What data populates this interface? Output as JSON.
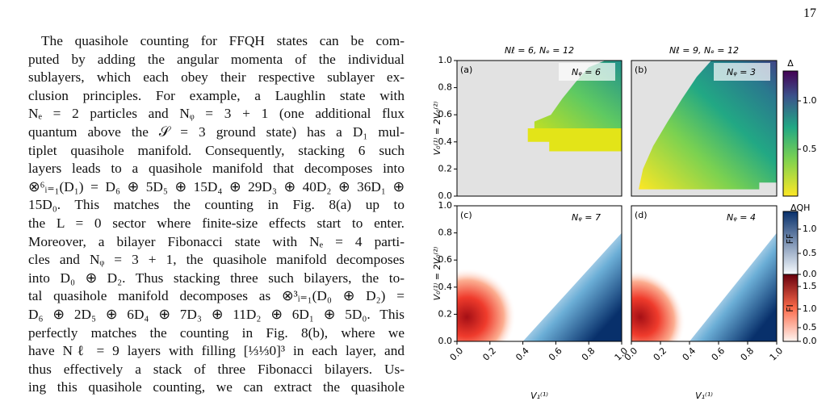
{
  "page_number": "17",
  "body": {
    "lines": [
      "The quasihole counting for FFQH states can be com-",
      "puted by adding the angular momenta of the individual",
      "sublayers, which each obey their respective sublayer ex-",
      "clusion principles. For example, a Laughlin state with",
      "Nₑ = 2 particles and Nᵩ = 3 + 1 (one additional flux",
      "quantum above the 𝒮 = 3 ground state) has a D₁ mul-",
      "tiplet quasihole manifold. Consequently, stacking 6 such",
      "layers leads to a quasihole manifold that decomposes into",
      "⊗⁶ᵢ₌₁(D₁) = D₆ ⊕ 5D₅ ⊕ 15D₄ ⊕ 29D₃ ⊕ 40D₂ ⊕ 36D₁ ⊕",
      "15D₀. This matches the counting in Fig. 8(a) up to",
      "the L = 0 sector where finite-size effects start to enter.",
      "Moreover, a bilayer Fibonacci state with Nₑ = 4 parti-",
      "cles and Nᵩ = 3 + 1, the quasihole manifold decomposes",
      "into D₀ ⊕ D₂. Thus stacking three such bilayers, the to-",
      "tal quasihole manifold decomposes as ⊗³ᵢ₌₁(D₀ ⊕ D₂) =",
      "D₆ ⊕ 2D₅ ⊕ 6D₄ ⊕ 7D₃ ⊕ 11D₂ ⊕ 6D₁ ⊕ 5D₀. This",
      "perfectly matches the counting in Fig. 8(b), where we",
      "have Nℓ = 9 layers with filling [⅓⅓0]³ in each layer, and",
      "thus effectively a stack of three Fibonacci bilayers. Us-",
      "ing this quasihole counting, we can extract the quasihole"
    ]
  },
  "figure": {
    "panels": [
      {
        "title": "Nℓ = 6, Nₑ = 12",
        "label": "(a)",
        "annotation": "Nᵩ = 6"
      },
      {
        "title": "Nℓ = 9, Nₑ = 12",
        "label": "(b)",
        "annotation": "Nᵩ = 3"
      },
      {
        "label": "(c)",
        "annotation": "Nᵩ = 7"
      },
      {
        "label": "(d)",
        "annotation": "Nᵩ = 4"
      }
    ],
    "y_label": "V₀⁽¹⁾ = 2V₀⁽²⁾",
    "x_label": "V₁⁽¹⁾",
    "y_tick_labels": [
      "0.0",
      "0.2",
      "0.4",
      "0.6",
      "0.8",
      "1.0"
    ],
    "x_tick_labels": [
      "0.0",
      "0.2",
      "0.4",
      "0.6",
      "0.8",
      "1.0"
    ],
    "colorbar_top": {
      "label": "Δ",
      "tick_labels": [
        "1.0",
        "0.5"
      ]
    },
    "colorbar_bottom": {
      "label": "ΔQH",
      "ff_label": "FF",
      "ff_tick_labels": [
        "1.0",
        "0.5",
        "0.0"
      ],
      "fi_label": "FI",
      "fi_tick_labels": [
        "1.5",
        "1.0",
        "0.5",
        "0.0"
      ]
    }
  }
}
